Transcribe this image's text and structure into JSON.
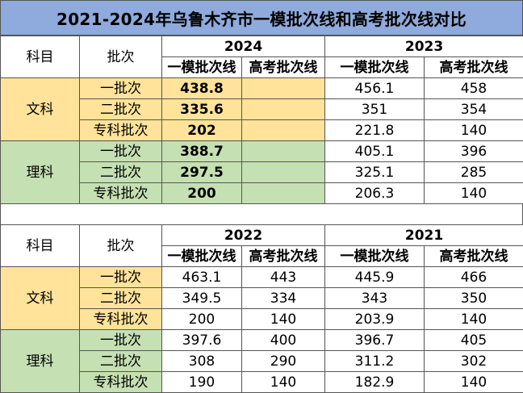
{
  "title": "2021-2024年乌鲁木齐市一模批次线和高考批次线对比",
  "headers": {
    "subject": "科目",
    "batch": "批次",
    "mock": "一模批次线",
    "gaokao": "高考批次线"
  },
  "subjects": {
    "wen": "文科",
    "li": "理科"
  },
  "batches": [
    "一批次",
    "二批次",
    "专科批次"
  ],
  "table1": {
    "yearA": "2024",
    "yearB": "2023",
    "wen": [
      {
        "a_mock": "438.8",
        "a_gk": "",
        "b_mock": "456.1",
        "b_gk": "458"
      },
      {
        "a_mock": "335.6",
        "a_gk": "",
        "b_mock": "351",
        "b_gk": "354"
      },
      {
        "a_mock": "202",
        "a_gk": "",
        "b_mock": "221.8",
        "b_gk": "140"
      }
    ],
    "li": [
      {
        "a_mock": "388.7",
        "a_gk": "",
        "b_mock": "405.1",
        "b_gk": "396"
      },
      {
        "a_mock": "297.5",
        "a_gk": "",
        "b_mock": "325.1",
        "b_gk": "285"
      },
      {
        "a_mock": "200",
        "a_gk": "",
        "b_mock": "206.3",
        "b_gk": "140"
      }
    ]
  },
  "table2": {
    "yearA": "2022",
    "yearB": "2021",
    "wen": [
      {
        "a_mock": "463.1",
        "a_gk": "443",
        "b_mock": "445.9",
        "b_gk": "466"
      },
      {
        "a_mock": "349.5",
        "a_gk": "334",
        "b_mock": "343",
        "b_gk": "350"
      },
      {
        "a_mock": "200",
        "a_gk": "140",
        "b_mock": "203.9",
        "b_gk": "140"
      }
    ],
    "li": [
      {
        "a_mock": "397.6",
        "a_gk": "400",
        "b_mock": "396.7",
        "b_gk": "405"
      },
      {
        "a_mock": "308",
        "a_gk": "290",
        "b_mock": "311.2",
        "b_gk": "302"
      },
      {
        "a_mock": "190",
        "a_gk": "140",
        "b_mock": "182.9",
        "b_gk": "140"
      }
    ]
  }
}
